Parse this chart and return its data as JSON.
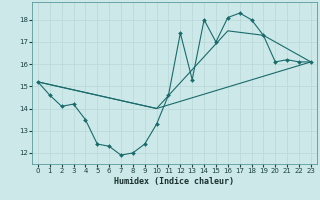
{
  "xlabel": "Humidex (Indice chaleur)",
  "xlim": [
    -0.5,
    23.5
  ],
  "ylim": [
    11.5,
    18.8
  ],
  "yticks": [
    12,
    13,
    14,
    15,
    16,
    17,
    18
  ],
  "xticks": [
    0,
    1,
    2,
    3,
    4,
    5,
    6,
    7,
    8,
    9,
    10,
    11,
    12,
    13,
    14,
    15,
    16,
    17,
    18,
    19,
    20,
    21,
    22,
    23
  ],
  "background_color": "#cce8e8",
  "grid_color": "#b8d8d8",
  "line_color": "#1a6b6b",
  "lines": [
    {
      "x": [
        0,
        1,
        2,
        3,
        4,
        5,
        6,
        7,
        8,
        9,
        10,
        11,
        12,
        13,
        14,
        15,
        16,
        17,
        18,
        19,
        20,
        21,
        22,
        23
      ],
      "y": [
        15.2,
        14.6,
        14.1,
        14.2,
        13.5,
        12.4,
        12.3,
        11.9,
        12.0,
        12.4,
        13.3,
        14.6,
        17.4,
        15.3,
        18.0,
        17.0,
        18.1,
        18.3,
        18.0,
        17.3,
        16.1,
        16.2,
        16.1,
        16.1
      ],
      "marker": true
    },
    {
      "x": [
        0,
        10,
        23
      ],
      "y": [
        15.2,
        14.0,
        16.1
      ],
      "marker": false
    },
    {
      "x": [
        0,
        10,
        16,
        19,
        23
      ],
      "y": [
        15.2,
        14.0,
        17.5,
        17.3,
        16.1
      ],
      "marker": false
    }
  ]
}
